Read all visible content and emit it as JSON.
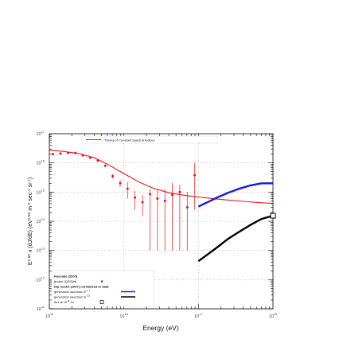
{
  "chart_data": {
    "type": "scatter",
    "xlabel": "Energy (eV)",
    "ylabel": "E^{2.50} x (dJ/dE)  (eV^{1.50} m^{-2} sec^{-1} sr^{-1})",
    "xscale": "log",
    "yscale": "log",
    "xlim": [
      1000000000000000.0,
      1e+18
    ],
    "ylim": [
      100000000000.0,
      1e+17
    ],
    "x_ticks": [
      {
        "base": "10",
        "exp": "15",
        "value": 1000000000000000.0
      },
      {
        "base": "10",
        "exp": "16",
        "value": 1e+16
      },
      {
        "base": "10",
        "exp": "17",
        "value": 1e+17
      },
      {
        "base": "10",
        "exp": "18",
        "value": 1e+18
      }
    ],
    "y_ticks": [
      {
        "base": "10",
        "exp": "11",
        "value": 100000000000.0
      },
      {
        "base": "10",
        "exp": "12",
        "value": 1000000000000.0
      },
      {
        "base": "10",
        "exp": "13",
        "value": 10000000000000.0
      },
      {
        "base": "10",
        "exp": "14",
        "value": 100000000000000.0
      },
      {
        "base": "10",
        "exp": "15",
        "value": 1000000000000000.0
      },
      {
        "base": "10",
        "exp": "16",
        "value": 1e+16
      },
      {
        "base": "10",
        "exp": "17",
        "value": 1e+17
      }
    ],
    "grid": true,
    "legend_top": {
      "position": "top-center",
      "label": "Theory of Constant Spectral Indices",
      "color": "#e8141b"
    },
    "legend_bottom": {
      "position": "bottom-left",
      "items": [
        {
          "text": "Kascade (2005)",
          "bold": true
        },
        {
          "text": "proton (QGSjet)",
          "marker": "dot",
          "color": "#e8141b"
        },
        {
          "text": "Dip model (2007) normalized to data",
          "bold": true
        },
        {
          "text": "generation spectrum E^{-2.7}",
          "marker": "line",
          "color": "#1a1adb"
        },
        {
          "text": "generation spectrum E^{-2.0}",
          "marker": "line",
          "color": "#000000"
        },
        {
          "text": "flux at 10^{18} eV",
          "marker": "square",
          "color": "#000000"
        }
      ]
    },
    "series": [
      {
        "type": "scatter",
        "color": "#e8141b",
        "points": [
          {
            "x": 1120000000000000.0,
            "y": 2e+16,
            "ylo": 1.9e+16,
            "yhi": 2.1e+16
          },
          {
            "x": 1410000000000000.0,
            "y": 2.1e+16,
            "ylo": 2e+16,
            "yhi": 2.2e+16
          },
          {
            "x": 1780000000000000.0,
            "y": 2.2e+16,
            "ylo": 2.1e+16,
            "yhi": 2.3e+16
          },
          {
            "x": 2240000000000000.0,
            "y": 2.2e+16,
            "ylo": 2.1e+16,
            "yhi": 2.3e+16
          },
          {
            "x": 2820000000000000.0,
            "y": 1.8e+16,
            "ylo": 1.7e+16,
            "yhi": 1.9e+16
          },
          {
            "x": 3550000000000000.0,
            "y": 1.5e+16,
            "ylo": 1.4e+16,
            "yhi": 1.6e+16
          },
          {
            "x": 4470000000000000.0,
            "y": 1.2e+16,
            "ylo": 1.1e+16,
            "yhi": 1.3e+16
          },
          {
            "x": 5620000000000000.0,
            "y": 8000000000000000.0,
            "ylo": 7000000000000000.0,
            "yhi": 9000000000000000.0
          },
          {
            "x": 7080000000000000.0,
            "y": 3500000000000000.0,
            "ylo": 2900000000000000.0,
            "yhi": 4100000000000000.0
          },
          {
            "x": 8910000000000000.0,
            "y": 2000000000000000.0,
            "ylo": 1500000000000000.0,
            "yhi": 2600000000000000.0
          },
          {
            "x": 1.12e+16,
            "y": 1300000000000000.0,
            "ylo": 600000000000000.0,
            "yhi": 2200000000000000.0
          },
          {
            "x": 1.41e+16,
            "y": 650000000000000.0,
            "ylo": 250000000000000.0,
            "yhi": 1100000000000000.0
          },
          {
            "x": 1.78e+16,
            "y": 450000000000000.0,
            "ylo": 150000000000000.0,
            "yhi": 800000000000000.0
          },
          {
            "x": 2.24e+16,
            "y": 850000000000000.0,
            "ylo": 10000000000000.0,
            "yhi": 1300000000000000.0
          },
          {
            "x": 2.82e+16,
            "y": 600000000000000.0,
            "ylo": 10000000000000.0,
            "yhi": 1200000000000000.0
          },
          {
            "x": 3.55e+16,
            "y": 500000000000000.0,
            "ylo": 10000000000000.0,
            "yhi": 1300000000000000.0
          },
          {
            "x": 4.47e+16,
            "y": 800000000000000.0,
            "ylo": 10000000000000.0,
            "yhi": 2000000000000000.0
          },
          {
            "x": 5.62e+16,
            "y": 1000000000000000.0,
            "ylo": 10000000000000.0,
            "yhi": 1800000000000000.0
          },
          {
            "x": 7.08e+16,
            "y": 300000000000000.0,
            "ylo": 10000000000000.0,
            "yhi": 1000000000000000.0
          },
          {
            "x": 8.91e+16,
            "y": 3800000000000000.0,
            "ylo": 250000000000000.0,
            "yhi": 1e+16
          }
        ]
      },
      {
        "type": "line",
        "color": "#e8141b",
        "x": [
          1000000000000000.0,
          1500000000000000.0,
          2500000000000000.0,
          4000000000000000.0,
          6000000000000000.0,
          1e+16,
          1.6e+16,
          2.5e+16,
          4e+16,
          6e+16,
          1e+17,
          2e+17,
          4e+17,
          7e+17,
          1e+18
        ],
        "y": [
          2.7e+16,
          2.5e+16,
          2.1e+16,
          1.5e+16,
          9000000000000000.0,
          4300000000000000.0,
          2200000000000000.0,
          1350000000000000.0,
          950000000000000.0,
          800000000000000.0,
          680000000000000.0,
          560000000000000.0,
          480000000000000.0,
          430000000000000.0,
          410000000000000.0
        ]
      },
      {
        "type": "line",
        "color": "#1a1adb",
        "x": [
          1e+17,
          1.3e+17,
          1.8e+17,
          2.5e+17,
          3.5e+17,
          5e+17,
          7e+17,
          1e+18
        ],
        "y": [
          320000000000000.0,
          440000000000000.0,
          660000000000000.0,
          940000000000000.0,
          1300000000000000.0,
          1700000000000000.0,
          2000000000000000.0,
          2000000000000000.0
        ]
      },
      {
        "type": "line",
        "color": "#000000",
        "x": [
          1e+17,
          1.3e+17,
          1.8e+17,
          2.5e+17,
          3.5e+17,
          5e+17,
          7e+17,
          1e+18
        ],
        "y": [
          4300000000000.0,
          7000000000000.0,
          13000000000000.0,
          25000000000000.0,
          43000000000000.0,
          75000000000000.0,
          120000000000000.0,
          155000000000000.0
        ]
      },
      {
        "type": "marker",
        "marker": "square",
        "color": "#000000",
        "x": [
          1e+18
        ],
        "y": [
          155000000000000.0
        ]
      }
    ]
  }
}
